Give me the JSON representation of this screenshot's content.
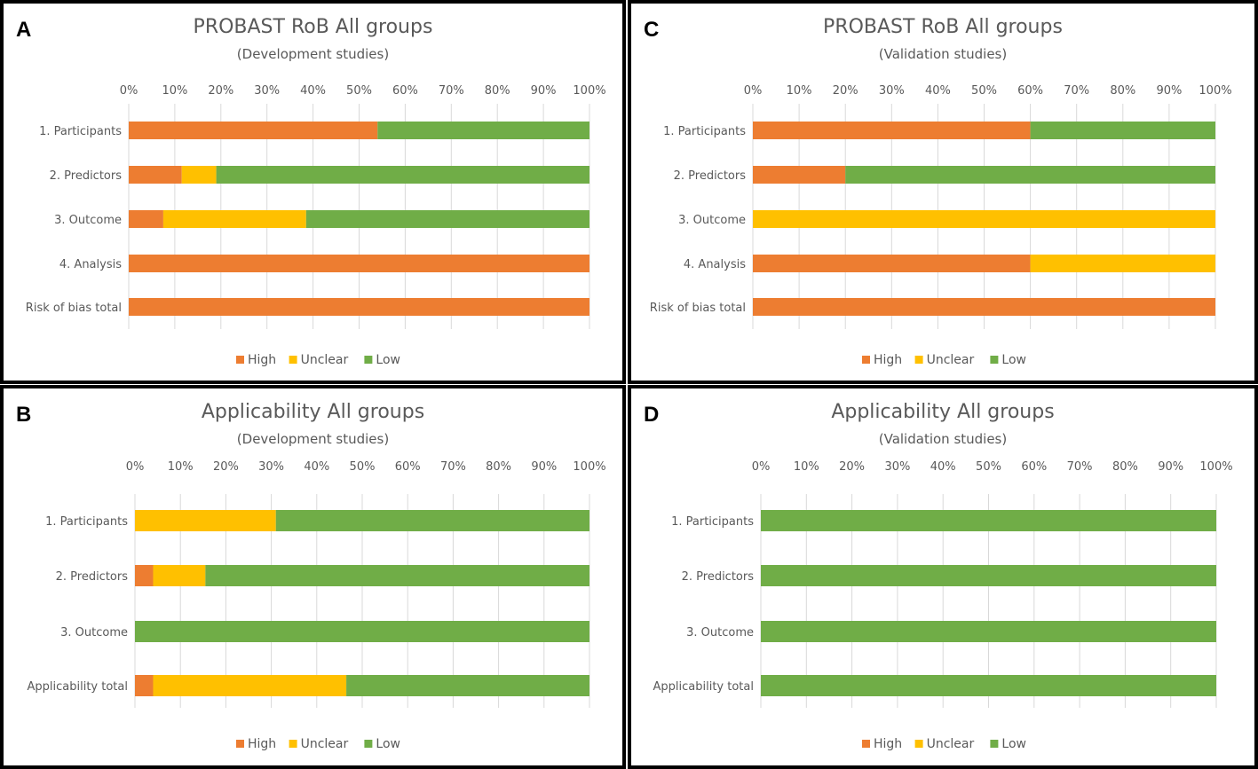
{
  "colors": {
    "high": "#ED7D31",
    "unclear": "#FFC000",
    "low": "#70AD47"
  },
  "legend": [
    "High",
    "Unclear",
    "Low"
  ],
  "chart_data": [
    {
      "panel": "A",
      "type": "bar",
      "stacked": true,
      "orientation": "horizontal",
      "title": "PROBAST RoB All groups",
      "subtitle": "(Development studies)",
      "xlim": [
        0,
        100
      ],
      "xticks": [
        "0%",
        "10%",
        "20%",
        "30%",
        "40%",
        "50%",
        "60%",
        "70%",
        "80%",
        "90%",
        "100%"
      ],
      "categories": [
        "1. Participants",
        "2. Predictors",
        "3. Outcome",
        "4. Analysis",
        "Risk of bias total"
      ],
      "series": [
        {
          "name": "High",
          "values": [
            54,
            11.5,
            7.5,
            100,
            100
          ]
        },
        {
          "name": "Unclear",
          "values": [
            0,
            7.5,
            31,
            0,
            0
          ]
        },
        {
          "name": "Low",
          "values": [
            46,
            81,
            61.5,
            0,
            0
          ]
        }
      ]
    },
    {
      "panel": "C",
      "type": "bar",
      "stacked": true,
      "orientation": "horizontal",
      "title": "PROBAST RoB All groups",
      "subtitle": "(Validation studies)",
      "xlim": [
        0,
        100
      ],
      "xticks": [
        "0%",
        "10%",
        "20%",
        "30%",
        "40%",
        "50%",
        "60%",
        "70%",
        "80%",
        "90%",
        "100%"
      ],
      "categories": [
        "1. Participants",
        "2. Predictors",
        "3. Outcome",
        "4. Analysis",
        "Risk of bias total"
      ],
      "series": [
        {
          "name": "High",
          "values": [
            60,
            20,
            0,
            60,
            100
          ]
        },
        {
          "name": "Unclear",
          "values": [
            0,
            0,
            100,
            40,
            0
          ]
        },
        {
          "name": "Low",
          "values": [
            40,
            80,
            0,
            0,
            0
          ]
        }
      ]
    },
    {
      "panel": "B",
      "type": "bar",
      "stacked": true,
      "orientation": "horizontal",
      "title": "Applicability All groups",
      "subtitle": "(Development studies)",
      "xlim": [
        0,
        100
      ],
      "xticks": [
        "0%",
        "10%",
        "20%",
        "30%",
        "40%",
        "50%",
        "60%",
        "70%",
        "80%",
        "90%",
        "100%"
      ],
      "categories": [
        "1. Participants",
        "2. Predictors",
        "3. Outcome",
        "Applicability total"
      ],
      "series": [
        {
          "name": "High",
          "values": [
            0,
            4,
            0,
            4
          ]
        },
        {
          "name": "Unclear",
          "values": [
            31,
            11.5,
            0,
            42.5
          ]
        },
        {
          "name": "Low",
          "values": [
            69,
            84.5,
            100,
            53.5
          ]
        }
      ]
    },
    {
      "panel": "D",
      "type": "bar",
      "stacked": true,
      "orientation": "horizontal",
      "title": "Applicability All groups",
      "subtitle": "(Validation studies)",
      "xlim": [
        0,
        100
      ],
      "xticks": [
        "0%",
        "10%",
        "20%",
        "30%",
        "40%",
        "50%",
        "60%",
        "70%",
        "80%",
        "90%",
        "100%"
      ],
      "categories": [
        "1. Participants",
        "2. Predictors",
        "3. Outcome",
        "Applicability total"
      ],
      "series": [
        {
          "name": "High",
          "values": [
            0,
            0,
            0,
            0
          ]
        },
        {
          "name": "Unclear",
          "values": [
            0,
            0,
            0,
            0
          ]
        },
        {
          "name": "Low",
          "values": [
            100,
            100,
            100,
            100
          ]
        }
      ]
    }
  ]
}
